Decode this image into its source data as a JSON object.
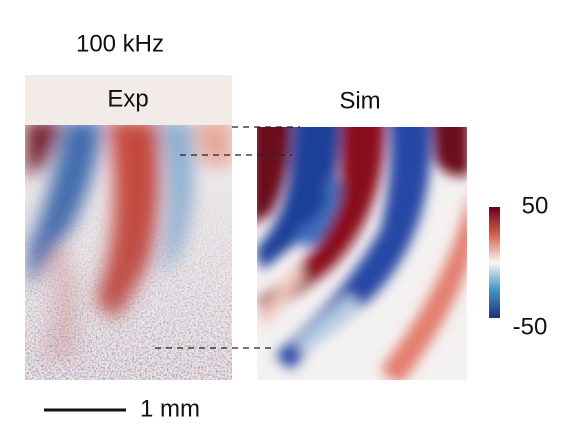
{
  "label": "100 kHz",
  "panels": {
    "experiment": "Exp",
    "simulation": "Sim"
  },
  "colorbar": {
    "max": 50,
    "min": -50
  },
  "scale_bar": "1 mm"
}
